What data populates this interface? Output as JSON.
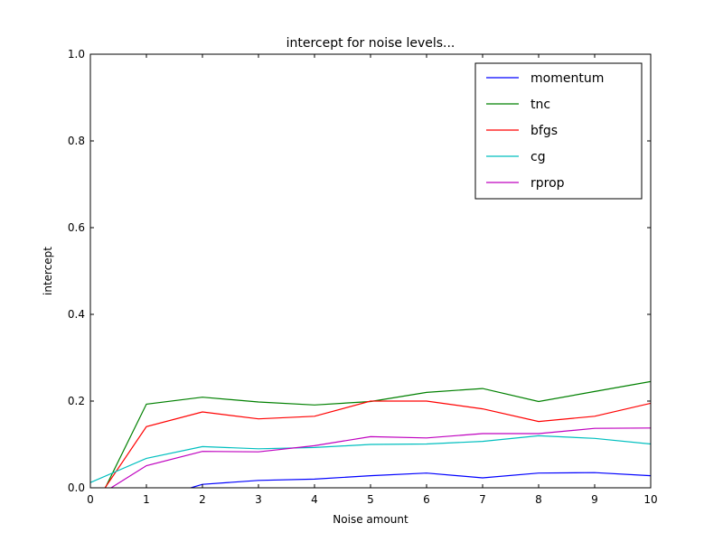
{
  "chart_data": {
    "type": "line",
    "title": "intercept for noise levels...",
    "xlabel": "Noise amount",
    "ylabel": "intercept",
    "xlim": [
      0,
      10
    ],
    "ylim": [
      0.0,
      1.0
    ],
    "xticks": [
      "0",
      "1",
      "2",
      "3",
      "4",
      "5",
      "6",
      "7",
      "8",
      "9",
      "10"
    ],
    "yticks": [
      "0.0",
      "0.2",
      "0.4",
      "0.6",
      "0.8",
      "1.0"
    ],
    "legend_position": "top-right",
    "grid": false,
    "x": [
      0,
      1,
      2,
      3,
      4,
      5,
      6,
      7,
      8,
      9,
      10
    ],
    "series": [
      {
        "name": "momentum",
        "color": "#0000ff",
        "values": [
          -0.08,
          -0.03,
          0.008,
          0.017,
          0.02,
          0.028,
          0.034,
          0.023,
          0.034,
          0.035,
          0.028
        ]
      },
      {
        "name": "tnc",
        "color": "#008000",
        "values": [
          -0.07,
          0.193,
          0.209,
          0.198,
          0.191,
          0.199,
          0.22,
          0.229,
          0.199,
          0.222,
          0.245
        ]
      },
      {
        "name": "bfgs",
        "color": "#ff0000",
        "values": [
          -0.05,
          0.141,
          0.175,
          0.159,
          0.165,
          0.2,
          0.2,
          0.182,
          0.153,
          0.165,
          0.195
        ]
      },
      {
        "name": "cg",
        "color": "#00bfbf",
        "values": [
          0.012,
          0.068,
          0.095,
          0.09,
          0.093,
          0.1,
          0.101,
          0.107,
          0.12,
          0.114,
          0.101
        ]
      },
      {
        "name": "rprop",
        "color": "#bf00bf",
        "values": [
          -0.03,
          0.051,
          0.084,
          0.083,
          0.097,
          0.118,
          0.115,
          0.125,
          0.125,
          0.137,
          0.138
        ]
      }
    ]
  }
}
